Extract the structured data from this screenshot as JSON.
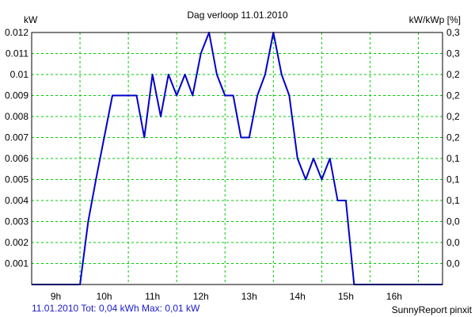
{
  "chart_data": {
    "type": "line",
    "title": "Dag  verloop 11.01.2010",
    "ylabel_left": "kW",
    "ylabel_right": "kW/kWp [%]",
    "ylim": [
      0,
      0.012
    ],
    "xlim": [
      8.5,
      17.0
    ],
    "grid": true,
    "x_ticks": [
      9,
      10,
      11,
      12,
      13,
      14,
      15,
      16
    ],
    "x_tick_labels": [
      "9h",
      "10h",
      "11h",
      "12h",
      "13h",
      "14h",
      "15h",
      "16h"
    ],
    "y_ticks": [
      0.001,
      0.002,
      0.003,
      0.004,
      0.005,
      0.006,
      0.007,
      0.008,
      0.009,
      0.01,
      0.011,
      0.012
    ],
    "y_tick_labels": [
      "0.001",
      "0.002",
      "0.003",
      "0.004",
      "0.005",
      "0.006",
      "0.007",
      "0.008",
      "0.009",
      "0.01",
      "0.011",
      "0.012"
    ],
    "y2_tick_labels": [
      "0,0",
      "0,0",
      "0,0",
      "0,1",
      "0,1",
      "0,1",
      "0,2",
      "0,2",
      "0,2",
      "0,2",
      "0,3",
      "0,3"
    ],
    "series": [
      {
        "color": "#0000cc",
        "x": [
          8.5,
          9.5,
          9.67,
          9.83,
          10.0,
          10.17,
          10.5,
          10.67,
          10.83,
          11.0,
          11.17,
          11.33,
          11.5,
          11.67,
          11.83,
          12.0,
          12.17,
          12.33,
          12.5,
          12.67,
          12.83,
          13.0,
          13.17,
          13.33,
          13.5,
          13.67,
          13.83,
          14.0,
          14.17,
          14.33,
          14.5,
          14.67,
          14.83,
          15.0,
          15.17,
          16.0,
          17.0
        ],
        "y": [
          0,
          0,
          0.003,
          0.005,
          0.007,
          0.009,
          0.009,
          0.009,
          0.007,
          0.01,
          0.008,
          0.01,
          0.009,
          0.01,
          0.009,
          0.011,
          0.012,
          0.01,
          0.009,
          0.009,
          0.007,
          0.007,
          0.009,
          0.01,
          0.012,
          0.01,
          0.009,
          0.006,
          0.005,
          0.006,
          0.005,
          0.006,
          0.004,
          0.004,
          0,
          0,
          0
        ]
      }
    ]
  },
  "footer": {
    "summary": "11.01.2010 Tot: 0,04 kWh Max: 0,01 kW",
    "credit": "SunnyReport pinxit"
  }
}
